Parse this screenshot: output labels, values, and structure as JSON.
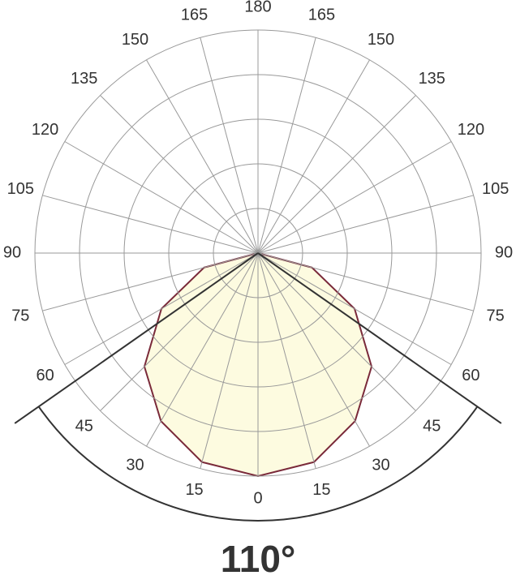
{
  "chart_data": {
    "type": "polar",
    "theta": [
      -90,
      -75,
      -60,
      -45,
      -30,
      -15,
      0,
      15,
      30,
      45,
      60,
      75,
      90
    ],
    "values": [
      0,
      0.25,
      0.5,
      0.72,
      0.87,
      0.97,
      1,
      0.97,
      0.87,
      0.72,
      0.5,
      0.25,
      0
    ],
    "color": "#7a2a3a",
    "fill": "#fdfbe0",
    "rlim": [
      0,
      1
    ],
    "rticks": [
      0.2,
      0.4,
      0.6,
      0.8,
      1
    ],
    "thetaticks": [
      {
        "value": -165,
        "label": "165"
      },
      {
        "value": -150,
        "label": "150"
      },
      {
        "value": -135,
        "label": "135"
      },
      {
        "value": -120,
        "label": "120"
      },
      {
        "value": -105,
        "label": "105"
      },
      {
        "value": -90,
        "label": "90"
      },
      {
        "value": -75,
        "label": "75"
      },
      {
        "value": -60,
        "label": "60"
      },
      {
        "value": -45,
        "label": "45"
      },
      {
        "value": -30,
        "label": "30"
      },
      {
        "value": -15,
        "label": "15"
      },
      0,
      15,
      30,
      45,
      60,
      75,
      90,
      105,
      120,
      135,
      150,
      165,
      180
    ],
    "grid": true,
    "beam_angle": 110,
    "beam_label": "110°"
  }
}
